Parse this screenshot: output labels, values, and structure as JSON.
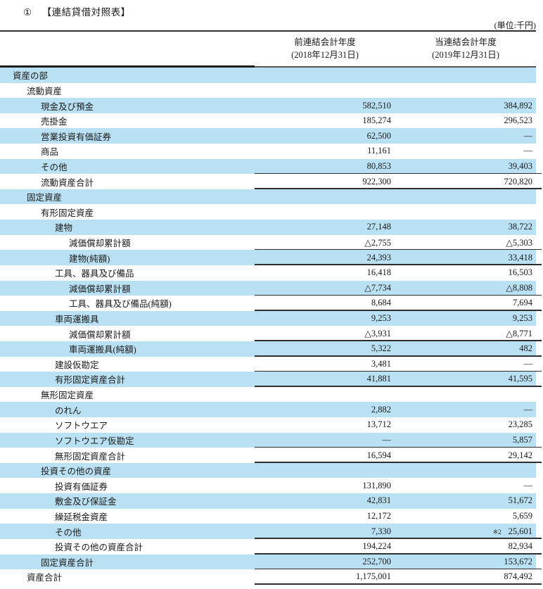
{
  "title": {
    "marker": "①",
    "text": "【連結貸借対照表】"
  },
  "unit_label": "(単位:千円)",
  "columns": {
    "prev": {
      "line1": "前連結会計年度",
      "line2": "(2018年12月31日)"
    },
    "curr": {
      "line1": "当連結会計年度",
      "line2": "(2019年12月31日)"
    }
  },
  "colors": {
    "row_highlight": "#b9e1f3",
    "rule": "#2e2e2e",
    "text": "#1a1a1a"
  },
  "table": {
    "rows": [
      {
        "label": "資産の部",
        "indent": 0,
        "v1": "",
        "v2": "",
        "note2": "",
        "ul": false
      },
      {
        "label": "流動資産",
        "indent": 1,
        "v1": "",
        "v2": "",
        "note2": "",
        "ul": false
      },
      {
        "label": "現金及び預金",
        "indent": 2,
        "v1": "582,510",
        "v2": "384,892",
        "note2": "",
        "ul": false
      },
      {
        "label": "売掛金",
        "indent": 2,
        "v1": "185,274",
        "v2": "296,523",
        "note2": "",
        "ul": false
      },
      {
        "label": "営業投資有価証券",
        "indent": 2,
        "v1": "62,500",
        "v2": "—",
        "note2": "",
        "ul": false
      },
      {
        "label": "商品",
        "indent": 2,
        "v1": "11,161",
        "v2": "—",
        "note2": "",
        "ul": false
      },
      {
        "label": "その他",
        "indent": 2,
        "v1": "80,853",
        "v2": "39,403",
        "note2": "",
        "ul": true
      },
      {
        "label": "流動資産合計",
        "indent": 2,
        "v1": "922,300",
        "v2": "720,820",
        "note2": "",
        "ul": true
      },
      {
        "label": "固定資産",
        "indent": 1,
        "v1": "",
        "v2": "",
        "note2": "",
        "ul": false
      },
      {
        "label": "有形固定資産",
        "indent": 2,
        "v1": "",
        "v2": "",
        "note2": "",
        "ul": false
      },
      {
        "label": "建物",
        "indent": 3,
        "v1": "27,148",
        "v2": "38,722",
        "note2": "",
        "ul": false
      },
      {
        "label": "減価償却累計額",
        "indent": 4,
        "v1": "△2,755",
        "v2": "△5,303",
        "note2": "",
        "ul": true
      },
      {
        "label": "建物(純額)",
        "indent": 4,
        "v1": "24,393",
        "v2": "33,418",
        "note2": "",
        "ul": true
      },
      {
        "label": "工具、器具及び備品",
        "indent": 3,
        "v1": "16,418",
        "v2": "16,503",
        "note2": "",
        "ul": false
      },
      {
        "label": "減価償却累計額",
        "indent": 4,
        "v1": "△7,734",
        "v2": "△8,808",
        "note2": "",
        "ul": true
      },
      {
        "label": "工具、器具及び備品(純額)",
        "indent": 4,
        "v1": "8,684",
        "v2": "7,694",
        "note2": "",
        "ul": true
      },
      {
        "label": "車両運搬具",
        "indent": 3,
        "v1": "9,253",
        "v2": "9,253",
        "note2": "",
        "ul": false
      },
      {
        "label": "減価償却累計額",
        "indent": 4,
        "v1": "△3,931",
        "v2": "△8,771",
        "note2": "",
        "ul": true
      },
      {
        "label": "車両運搬具(純額)",
        "indent": 4,
        "v1": "5,322",
        "v2": "482",
        "note2": "",
        "ul": true
      },
      {
        "label": "建設仮勘定",
        "indent": 3,
        "v1": "3,481",
        "v2": "—",
        "note2": "",
        "ul": true
      },
      {
        "label": "有形固定資産合計",
        "indent": 3,
        "v1": "41,881",
        "v2": "41,595",
        "note2": "",
        "ul": true
      },
      {
        "label": "無形固定資産",
        "indent": 2,
        "v1": "",
        "v2": "",
        "note2": "",
        "ul": false
      },
      {
        "label": "のれん",
        "indent": 3,
        "v1": "2,882",
        "v2": "—",
        "note2": "",
        "ul": false
      },
      {
        "label": "ソフトウエア",
        "indent": 3,
        "v1": "13,712",
        "v2": "23,285",
        "note2": "",
        "ul": false
      },
      {
        "label": "ソフトウエア仮勘定",
        "indent": 3,
        "v1": "—",
        "v2": "5,857",
        "note2": "",
        "ul": true
      },
      {
        "label": "無形固定資産合計",
        "indent": 3,
        "v1": "16,594",
        "v2": "29,142",
        "note2": "",
        "ul": true
      },
      {
        "label": "投資その他の資産",
        "indent": 2,
        "v1": "",
        "v2": "",
        "note2": "",
        "ul": false
      },
      {
        "label": "投資有価証券",
        "indent": 3,
        "v1": "131,890",
        "v2": "—",
        "note2": "",
        "ul": false
      },
      {
        "label": "敷金及び保証金",
        "indent": 3,
        "v1": "42,831",
        "v2": "51,672",
        "note2": "",
        "ul": false
      },
      {
        "label": "繰延税金資産",
        "indent": 3,
        "v1": "12,172",
        "v2": "5,659",
        "note2": "",
        "ul": false
      },
      {
        "label": "その他",
        "indent": 3,
        "v1": "7,330",
        "v2": "25,601",
        "note2": "※2",
        "ul": true
      },
      {
        "label": "投資その他の資産合計",
        "indent": 3,
        "v1": "194,224",
        "v2": "82,934",
        "note2": "",
        "ul": true
      },
      {
        "label": "固定資産合計",
        "indent": 2,
        "v1": "252,700",
        "v2": "153,672",
        "note2": "",
        "ul": true
      },
      {
        "label": "資産合計",
        "indent": 1,
        "v1": "1,175,001",
        "v2": "874,492",
        "note2": "",
        "ul": true
      }
    ]
  }
}
